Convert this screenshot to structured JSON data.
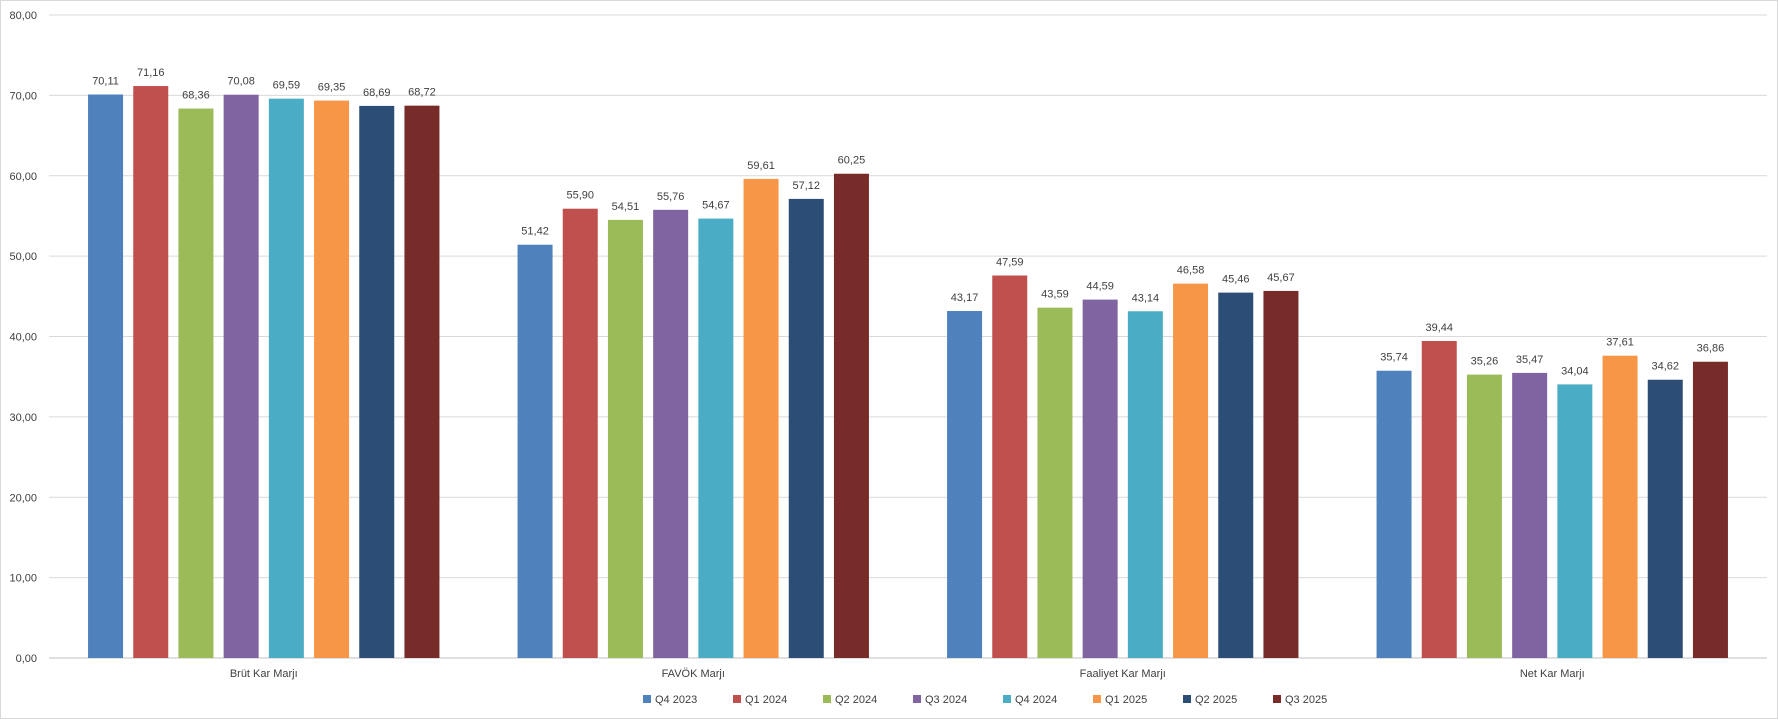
{
  "chart_data": {
    "type": "bar",
    "categories": [
      "Brüt Kar Marjı",
      "FAVÖK Marjı",
      "Faaliyet Kar Marjı",
      "Net Kar Marjı"
    ],
    "series": [
      {
        "name": "Q4 2023",
        "color": "#4F81BD",
        "values": [
          70.11,
          51.42,
          43.17,
          35.74
        ],
        "labels": [
          "70,11",
          "51,42",
          "43,17",
          "35,74"
        ]
      },
      {
        "name": "Q1 2024",
        "color": "#C0504D",
        "values": [
          71.16,
          55.9,
          47.59,
          39.44
        ],
        "labels": [
          "71,16",
          "55,90",
          "47,59",
          "39,44"
        ]
      },
      {
        "name": "Q2 2024",
        "color": "#9BBB59",
        "values": [
          68.36,
          54.51,
          43.59,
          35.26
        ],
        "labels": [
          "68,36",
          "54,51",
          "43,59",
          "35,26"
        ]
      },
      {
        "name": "Q3 2024",
        "color": "#8064A2",
        "values": [
          70.08,
          55.76,
          44.59,
          35.47
        ],
        "labels": [
          "70,08",
          "55,76",
          "44,59",
          "35,47"
        ]
      },
      {
        "name": "Q4 2024",
        "color": "#4BACC6",
        "values": [
          69.59,
          54.67,
          43.14,
          34.04
        ],
        "labels": [
          "69,59",
          "54,67",
          "43,14",
          "34,04"
        ]
      },
      {
        "name": "Q1 2025",
        "color": "#F79646",
        "values": [
          69.35,
          59.61,
          46.58,
          37.61
        ],
        "labels": [
          "69,35",
          "59,61",
          "46,58",
          "37,61"
        ]
      },
      {
        "name": "Q2 2025",
        "color": "#2C4D75",
        "values": [
          68.69,
          57.12,
          45.46,
          34.62
        ],
        "labels": [
          "68,69",
          "57,12",
          "45,46",
          "34,62"
        ]
      },
      {
        "name": "Q3 2025",
        "color": "#772C2A",
        "values": [
          68.72,
          60.25,
          45.67,
          36.86
        ],
        "labels": [
          "68,72",
          "60,25",
          "45,67",
          "36,86"
        ]
      }
    ],
    "yticks": [
      0,
      10,
      20,
      30,
      40,
      50,
      60,
      70,
      80
    ],
    "ytick_labels": [
      "0,00",
      "10,00",
      "20,00",
      "30,00",
      "40,00",
      "50,00",
      "60,00",
      "70,00",
      "80,00"
    ],
    "ylim": [
      0,
      80
    ],
    "title": "",
    "xlabel": "",
    "ylabel": "",
    "grid": true,
    "legend_position": "bottom"
  }
}
